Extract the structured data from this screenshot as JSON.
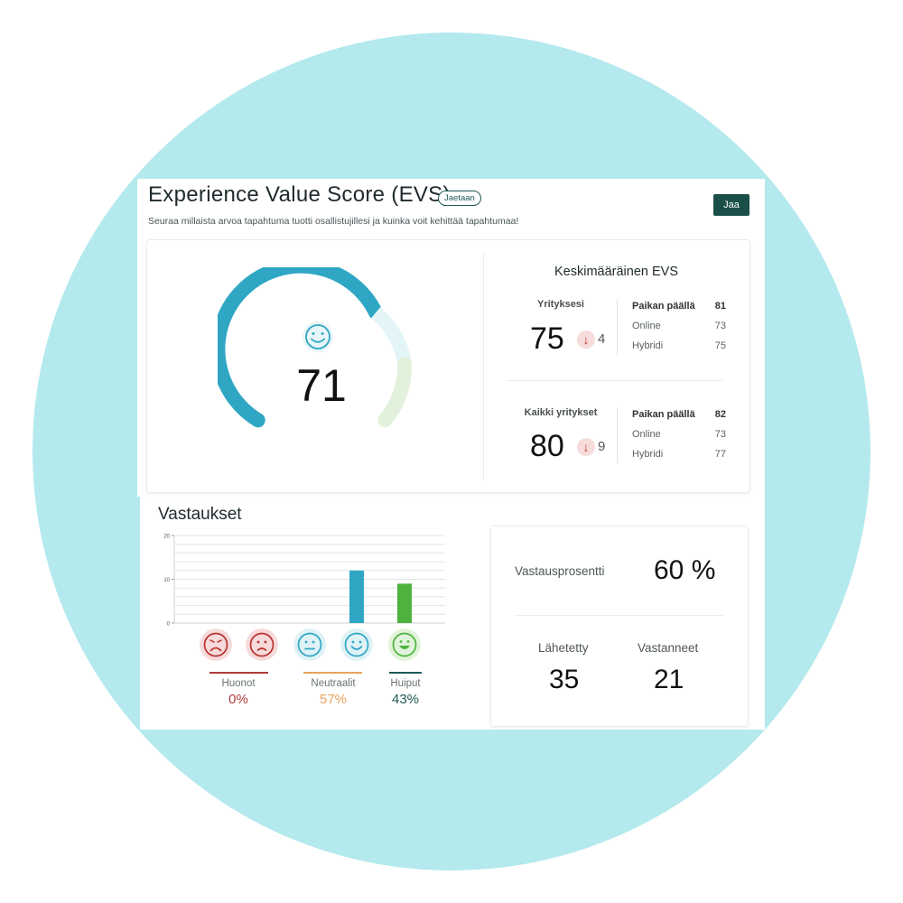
{
  "header": {
    "title": "Experience Value Score (EVS)",
    "badge": "Jaetaan",
    "subtitle": "Seuraa millaista arvoa tapahtuma tuotti osallistujillesi ja kuinka voit kehittää tapahtumaa!",
    "share_label": "Jaa"
  },
  "gauge": {
    "value": "71",
    "score_fraction": 0.71,
    "icon": "smiley-face-icon",
    "colors": {
      "main": "#2fa7c4",
      "light_blue": "#e4f5f8",
      "light_green": "#e2f1dc"
    }
  },
  "average": {
    "title": "Keskimääräinen EVS",
    "company": {
      "label": "Yrityksesi",
      "value": "75",
      "delta": "4",
      "rows": [
        {
          "label": "Paikan päällä",
          "value": "81"
        },
        {
          "label": "Online",
          "value": "73"
        },
        {
          "label": "Hybridi",
          "value": "75"
        }
      ]
    },
    "all": {
      "label": "Kaikki yritykset",
      "value": "80",
      "delta": "9",
      "rows": [
        {
          "label": "Paikan päällä",
          "value": "82"
        },
        {
          "label": "Online",
          "value": "73"
        },
        {
          "label": "Hybridi",
          "value": "77"
        }
      ]
    }
  },
  "responses": {
    "title": "Vastaukset",
    "groups": [
      {
        "label": "Huonot",
        "pct": "0%",
        "color": "#b03a3a"
      },
      {
        "label": "Neutraalit",
        "pct": "57%",
        "color": "#e8a25c"
      },
      {
        "label": "Huiput",
        "pct": "43%",
        "color": "#1e5a58"
      }
    ],
    "rate_label": "Vastausprosentti",
    "rate_value": "60 %",
    "sent_label": "Lähetetty",
    "sent_value": "35",
    "answered_label": "Vastanneet",
    "answered_value": "21"
  },
  "chart_data": {
    "type": "bar",
    "categories": [
      "very-unhappy",
      "unhappy",
      "neutral",
      "happy",
      "very-happy"
    ],
    "values": [
      0,
      0,
      0,
      12,
      9
    ],
    "ylim": [
      0,
      20
    ],
    "yticks": [
      "0",
      "10",
      "20"
    ],
    "bar_colors": [
      "#c0392b",
      "#c0392b",
      "#2fa7c4",
      "#2fa7c4",
      "#4db33d"
    ],
    "grid": true
  }
}
